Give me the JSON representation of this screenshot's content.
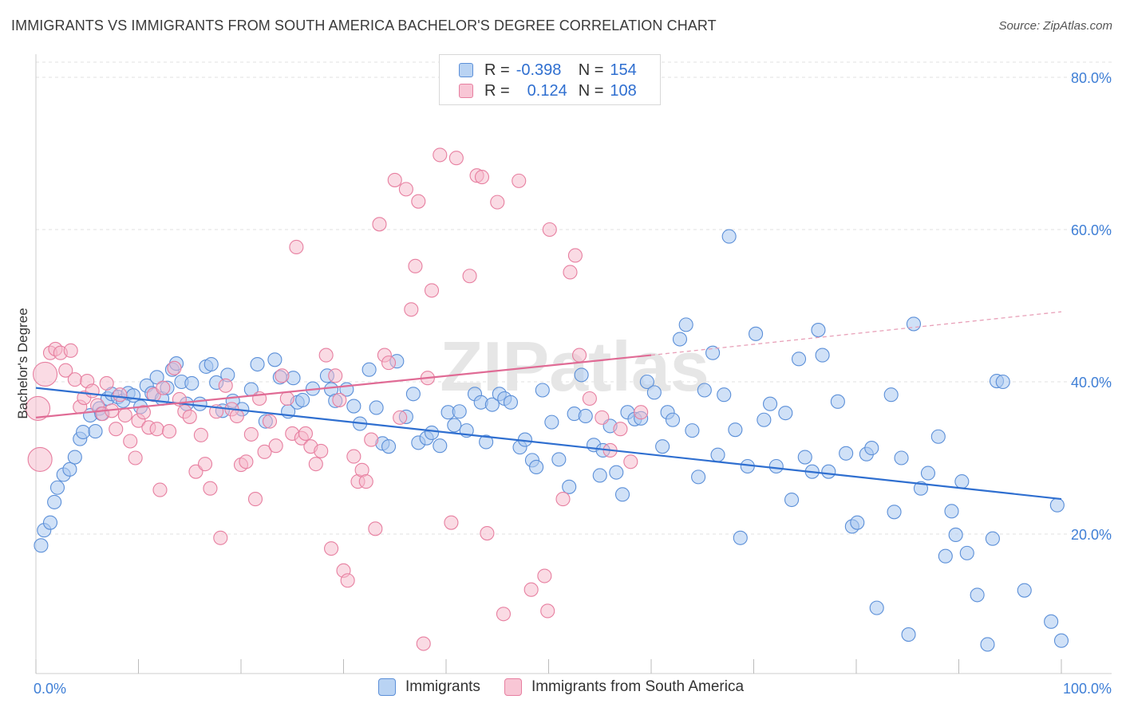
{
  "title": "IMMIGRANTS VS IMMIGRANTS FROM SOUTH AMERICA BACHELOR'S DEGREE CORRELATION CHART",
  "source": "Source: ZipAtlas.com",
  "watermark": "ZIPatlas",
  "legend": {
    "rows": [
      {
        "r_label": "R =",
        "r_value": "-0.398",
        "n_label": "N =",
        "n_value": "154",
        "color": "#a8c8f0",
        "stroke": "#5b8fd8"
      },
      {
        "r_label": "R =",
        "r_value": "0.124",
        "n_label": "N =",
        "n_value": "108",
        "color": "#f6b8ca",
        "stroke": "#e77fa0"
      }
    ]
  },
  "bottom_legend": [
    {
      "label": "Immigrants",
      "color": "#a8c8f0",
      "stroke": "#5b8fd8"
    },
    {
      "label": "Immigrants from South America",
      "color": "#f6b8ca",
      "stroke": "#e77fa0"
    }
  ],
  "chart_data": {
    "type": "scatter",
    "title": "IMMIGRANTS VS IMMIGRANTS FROM SOUTH AMERICA BACHELOR'S DEGREE CORRELATION CHART",
    "xlabel": "",
    "ylabel": "Bachelor's Degree",
    "xlim": [
      0,
      100
    ],
    "ylim": [
      0,
      81
    ],
    "x_tick_labels": [
      "0.0%",
      "100.0%"
    ],
    "y_ticks": [
      20,
      40,
      60,
      80
    ],
    "y_tick_labels": [
      "20.0%",
      "40.0%",
      "60.0%",
      "80.0%"
    ],
    "grid": true,
    "series": [
      {
        "name": "Immigrants",
        "color": "#7aaae8",
        "trend": {
          "x0": 0,
          "y0": 39.2,
          "x1": 100,
          "y1": 24.6,
          "color": "#2f6fd0"
        },
        "points": [
          [
            0.5,
            18.5
          ],
          [
            0.8,
            20.5
          ],
          [
            1.4,
            21.5
          ],
          [
            1.8,
            24.2
          ],
          [
            2.1,
            26.1
          ],
          [
            2.7,
            27.8
          ],
          [
            3.3,
            28.5
          ],
          [
            3.8,
            30.1
          ],
          [
            4.3,
            32.5
          ],
          [
            4.6,
            33.4
          ],
          [
            5.3,
            35.6
          ],
          [
            5.8,
            33.5
          ],
          [
            6.2,
            36.5
          ],
          [
            6.4,
            35.8
          ],
          [
            7.0,
            37.8
          ],
          [
            7.4,
            38.4
          ],
          [
            8.0,
            38.0
          ],
          [
            8.5,
            37.5
          ],
          [
            9.0,
            38.5
          ],
          [
            9.5,
            38.2
          ],
          [
            10.2,
            36.7
          ],
          [
            10.8,
            39.5
          ],
          [
            11.3,
            38.5
          ],
          [
            11.8,
            40.6
          ],
          [
            12.3,
            37.8
          ],
          [
            12.8,
            39.2
          ],
          [
            13.3,
            41.6
          ],
          [
            13.7,
            42.4
          ],
          [
            14.2,
            40.0
          ],
          [
            14.7,
            37.1
          ],
          [
            15.2,
            39.8
          ],
          [
            16.0,
            37.1
          ],
          [
            16.6,
            42.0
          ],
          [
            17.1,
            42.3
          ],
          [
            17.6,
            39.9
          ],
          [
            18.2,
            36.2
          ],
          [
            18.7,
            40.9
          ],
          [
            19.2,
            37.5
          ],
          [
            20.1,
            36.4
          ],
          [
            21.0,
            39.0
          ],
          [
            21.6,
            42.3
          ],
          [
            22.4,
            34.8
          ],
          [
            23.3,
            42.9
          ],
          [
            23.8,
            40.6
          ],
          [
            24.6,
            36.1
          ],
          [
            25.1,
            40.5
          ],
          [
            25.5,
            37.3
          ],
          [
            26.0,
            37.6
          ],
          [
            27.0,
            39.1
          ],
          [
            28.4,
            40.8
          ],
          [
            28.8,
            39.0
          ],
          [
            29.2,
            37.5
          ],
          [
            30.3,
            39.0
          ],
          [
            31.0,
            36.8
          ],
          [
            31.6,
            34.5
          ],
          [
            32.5,
            41.6
          ],
          [
            33.2,
            36.6
          ],
          [
            33.8,
            31.9
          ],
          [
            34.4,
            31.5
          ],
          [
            35.2,
            42.7
          ],
          [
            36.1,
            35.4
          ],
          [
            36.8,
            38.4
          ],
          [
            37.3,
            32.0
          ],
          [
            38.1,
            32.6
          ],
          [
            38.6,
            33.3
          ],
          [
            39.4,
            31.6
          ],
          [
            40.2,
            36.0
          ],
          [
            40.8,
            34.3
          ],
          [
            41.3,
            36.1
          ],
          [
            42.0,
            33.6
          ],
          [
            42.8,
            38.4
          ],
          [
            43.4,
            37.3
          ],
          [
            43.9,
            32.1
          ],
          [
            44.5,
            37.0
          ],
          [
            45.2,
            38.4
          ],
          [
            45.7,
            37.8
          ],
          [
            46.3,
            37.3
          ],
          [
            47.2,
            31.4
          ],
          [
            47.7,
            32.4
          ],
          [
            48.4,
            29.7
          ],
          [
            48.8,
            28.8
          ],
          [
            49.4,
            38.9
          ],
          [
            50.3,
            34.7
          ],
          [
            51.0,
            29.8
          ],
          [
            52.0,
            26.2
          ],
          [
            52.5,
            35.8
          ],
          [
            53.2,
            40.9
          ],
          [
            53.6,
            35.5
          ],
          [
            54.4,
            31.7
          ],
          [
            55.0,
            27.7
          ],
          [
            55.3,
            31.0
          ],
          [
            56.0,
            34.2
          ],
          [
            56.6,
            28.1
          ],
          [
            57.2,
            25.2
          ],
          [
            57.7,
            36.0
          ],
          [
            58.4,
            35.1
          ],
          [
            59.0,
            35.2
          ],
          [
            59.6,
            40.0
          ],
          [
            60.3,
            38.6
          ],
          [
            61.1,
            31.5
          ],
          [
            61.6,
            36.0
          ],
          [
            62.1,
            35.0
          ],
          [
            62.8,
            45.6
          ],
          [
            63.4,
            47.5
          ],
          [
            64.0,
            33.6
          ],
          [
            64.6,
            27.5
          ],
          [
            65.2,
            38.9
          ],
          [
            66.0,
            43.8
          ],
          [
            66.5,
            30.4
          ],
          [
            67.1,
            38.3
          ],
          [
            67.6,
            59.1
          ],
          [
            68.2,
            33.7
          ],
          [
            68.7,
            19.5
          ],
          [
            69.4,
            28.9
          ],
          [
            70.2,
            46.3
          ],
          [
            71.0,
            35.0
          ],
          [
            71.6,
            37.1
          ],
          [
            72.2,
            28.9
          ],
          [
            73.1,
            35.9
          ],
          [
            73.7,
            24.5
          ],
          [
            74.4,
            43.0
          ],
          [
            75.0,
            30.1
          ],
          [
            75.7,
            28.2
          ],
          [
            76.3,
            46.8
          ],
          [
            76.7,
            43.5
          ],
          [
            77.3,
            28.2
          ],
          [
            78.2,
            37.4
          ],
          [
            79.0,
            30.6
          ],
          [
            79.6,
            21.0
          ],
          [
            80.1,
            21.5
          ],
          [
            81.0,
            30.5
          ],
          [
            81.5,
            31.3
          ],
          [
            82.0,
            10.3
          ],
          [
            83.4,
            38.3
          ],
          [
            83.7,
            22.9
          ],
          [
            84.4,
            30.0
          ],
          [
            85.1,
            6.8
          ],
          [
            85.6,
            47.6
          ],
          [
            86.3,
            26.0
          ],
          [
            87.0,
            28.0
          ],
          [
            88.0,
            32.8
          ],
          [
            88.7,
            17.1
          ],
          [
            89.3,
            23.0
          ],
          [
            89.7,
            19.9
          ],
          [
            90.3,
            26.9
          ],
          [
            90.8,
            17.5
          ],
          [
            91.8,
            12.0
          ],
          [
            92.8,
            5.5
          ],
          [
            93.3,
            19.4
          ],
          [
            93.7,
            40.1
          ],
          [
            94.3,
            40.0
          ],
          [
            96.4,
            12.6
          ],
          [
            99.0,
            8.5
          ],
          [
            99.6,
            23.8
          ],
          [
            100.0,
            6.0
          ]
        ]
      },
      {
        "name": "Immigrants from South America",
        "color": "#f29ab6",
        "trend": {
          "x0": 0,
          "y0": 35.3,
          "x1": 60,
          "y1": 43.5,
          "color": "#e06b95"
        },
        "trend_dashed": {
          "x0": 60,
          "y0": 43.5,
          "x1": 100,
          "y1": 49.2,
          "color": "#e8a0b8"
        },
        "points": [
          [
            0.2,
            36.5
          ],
          [
            0.4,
            29.8
          ],
          [
            0.9,
            41.0
          ],
          [
            1.4,
            43.8
          ],
          [
            1.9,
            44.3
          ],
          [
            2.4,
            43.8
          ],
          [
            2.9,
            41.5
          ],
          [
            3.4,
            44.1
          ],
          [
            3.8,
            40.3
          ],
          [
            4.3,
            36.7
          ],
          [
            4.7,
            37.9
          ],
          [
            5.0,
            40.1
          ],
          [
            5.5,
            38.8
          ],
          [
            6.0,
            36.9
          ],
          [
            6.5,
            35.8
          ],
          [
            6.9,
            39.8
          ],
          [
            7.4,
            36.2
          ],
          [
            7.8,
            33.8
          ],
          [
            8.2,
            38.3
          ],
          [
            8.7,
            35.6
          ],
          [
            9.2,
            32.2
          ],
          [
            9.7,
            30.0
          ],
          [
            10.0,
            34.9
          ],
          [
            10.5,
            36.0
          ],
          [
            11.0,
            34.0
          ],
          [
            11.5,
            38.3
          ],
          [
            11.8,
            33.8
          ],
          [
            12.1,
            25.8
          ],
          [
            12.4,
            39.2
          ],
          [
            13.0,
            33.5
          ],
          [
            13.5,
            41.8
          ],
          [
            14.0,
            37.7
          ],
          [
            14.5,
            36.1
          ],
          [
            15.0,
            35.4
          ],
          [
            15.6,
            28.2
          ],
          [
            16.1,
            33.0
          ],
          [
            16.5,
            29.2
          ],
          [
            17.0,
            26.0
          ],
          [
            17.6,
            36.1
          ],
          [
            18.0,
            19.5
          ],
          [
            18.5,
            39.5
          ],
          [
            19.1,
            36.4
          ],
          [
            19.6,
            35.5
          ],
          [
            20.0,
            29.1
          ],
          [
            20.5,
            29.5
          ],
          [
            21.0,
            33.1
          ],
          [
            21.4,
            24.6
          ],
          [
            21.8,
            37.8
          ],
          [
            22.3,
            30.8
          ],
          [
            22.8,
            34.8
          ],
          [
            23.4,
            31.6
          ],
          [
            24.0,
            40.8
          ],
          [
            24.5,
            37.8
          ],
          [
            25.0,
            33.2
          ],
          [
            25.4,
            57.7
          ],
          [
            25.9,
            32.6
          ],
          [
            26.3,
            33.2
          ],
          [
            26.8,
            31.5
          ],
          [
            27.3,
            29.2
          ],
          [
            27.8,
            30.9
          ],
          [
            28.3,
            43.5
          ],
          [
            28.8,
            18.1
          ],
          [
            29.2,
            40.8
          ],
          [
            29.6,
            37.6
          ],
          [
            30.0,
            15.2
          ],
          [
            30.4,
            13.9
          ],
          [
            31.0,
            30.2
          ],
          [
            31.4,
            26.9
          ],
          [
            31.8,
            28.4
          ],
          [
            32.2,
            26.9
          ],
          [
            32.7,
            32.4
          ],
          [
            33.1,
            20.7
          ],
          [
            33.5,
            60.7
          ],
          [
            34.0,
            43.5
          ],
          [
            34.4,
            42.5
          ],
          [
            35.0,
            66.5
          ],
          [
            35.5,
            35.3
          ],
          [
            36.1,
            65.3
          ],
          [
            36.6,
            49.5
          ],
          [
            37.0,
            55.2
          ],
          [
            37.3,
            63.7
          ],
          [
            37.8,
            5.6
          ],
          [
            38.2,
            40.5
          ],
          [
            38.6,
            52.0
          ],
          [
            39.4,
            69.8
          ],
          [
            40.5,
            21.5
          ],
          [
            41.0,
            69.4
          ],
          [
            42.3,
            53.9
          ],
          [
            43.0,
            67.1
          ],
          [
            43.5,
            66.9
          ],
          [
            44.0,
            20.1
          ],
          [
            45.0,
            63.6
          ],
          [
            45.6,
            9.5
          ],
          [
            47.1,
            66.4
          ],
          [
            48.3,
            12.7
          ],
          [
            49.6,
            14.5
          ],
          [
            49.9,
            9.9
          ],
          [
            50.1,
            60.0
          ],
          [
            51.4,
            24.6
          ],
          [
            52.1,
            54.4
          ],
          [
            52.6,
            56.6
          ],
          [
            53.0,
            43.5
          ],
          [
            54.0,
            37.8
          ],
          [
            55.2,
            35.3
          ],
          [
            56.0,
            31.0
          ],
          [
            57.0,
            33.8
          ],
          [
            58.0,
            29.5
          ],
          [
            59.0,
            36.0
          ]
        ],
        "large_points": [
          [
            0.2,
            36.5
          ],
          [
            0.4,
            29.8
          ],
          [
            0.9,
            41.0
          ]
        ]
      }
    ]
  }
}
